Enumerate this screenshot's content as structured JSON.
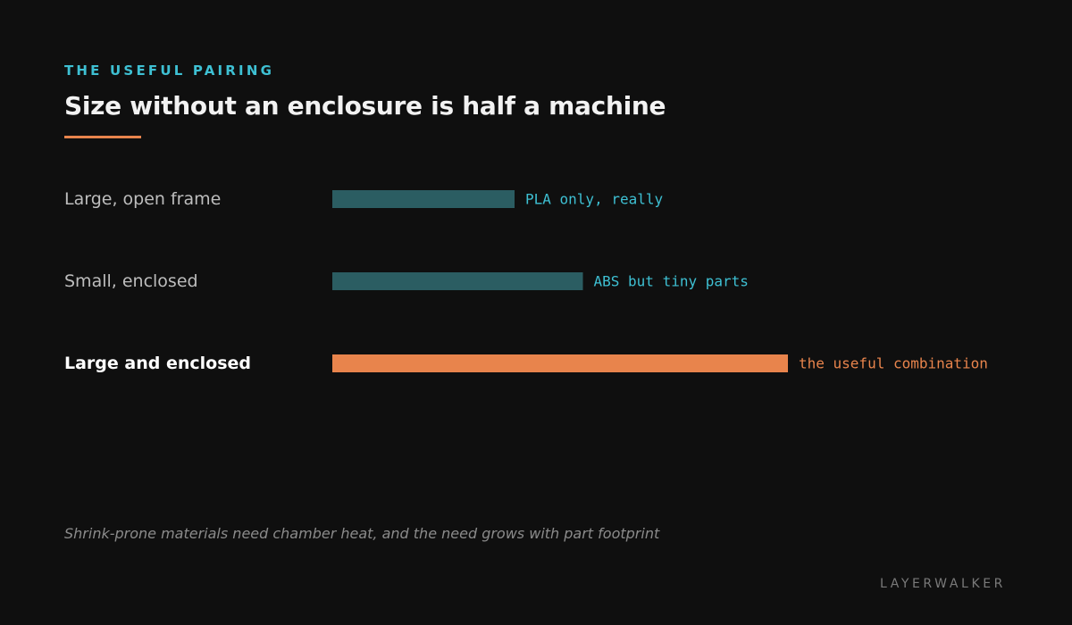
{
  "eyebrow": "THE USEFUL PAIRING",
  "title": "Size without an enclosure is half a machine",
  "footnote": "Shrink-prone materials need chamber heat, and the need grows with part footprint",
  "brand": "LAYERWALKER",
  "colors": {
    "eyebrow": "#3ec0d3",
    "accent": "#e8844c",
    "muted_bar": "#2b5d62",
    "muted_label": "#3ec0d3",
    "background": "#0f0f0f"
  },
  "chart_data": {
    "type": "bar",
    "orientation": "horizontal",
    "categories": [
      "Large, open frame",
      "Small, enclosed",
      "Large and enclosed"
    ],
    "values": [
      40,
      55,
      100
    ],
    "value_scale": "relative (0-100), no axis printed",
    "annotations": [
      "PLA only, really",
      "ABS but tiny parts",
      "the useful combination"
    ],
    "highlight_index": 2,
    "xlim": [
      0,
      100
    ],
    "title": "Size without an enclosure is half a machine",
    "xlabel": "",
    "ylabel": "",
    "grid": false,
    "legend": "none"
  }
}
